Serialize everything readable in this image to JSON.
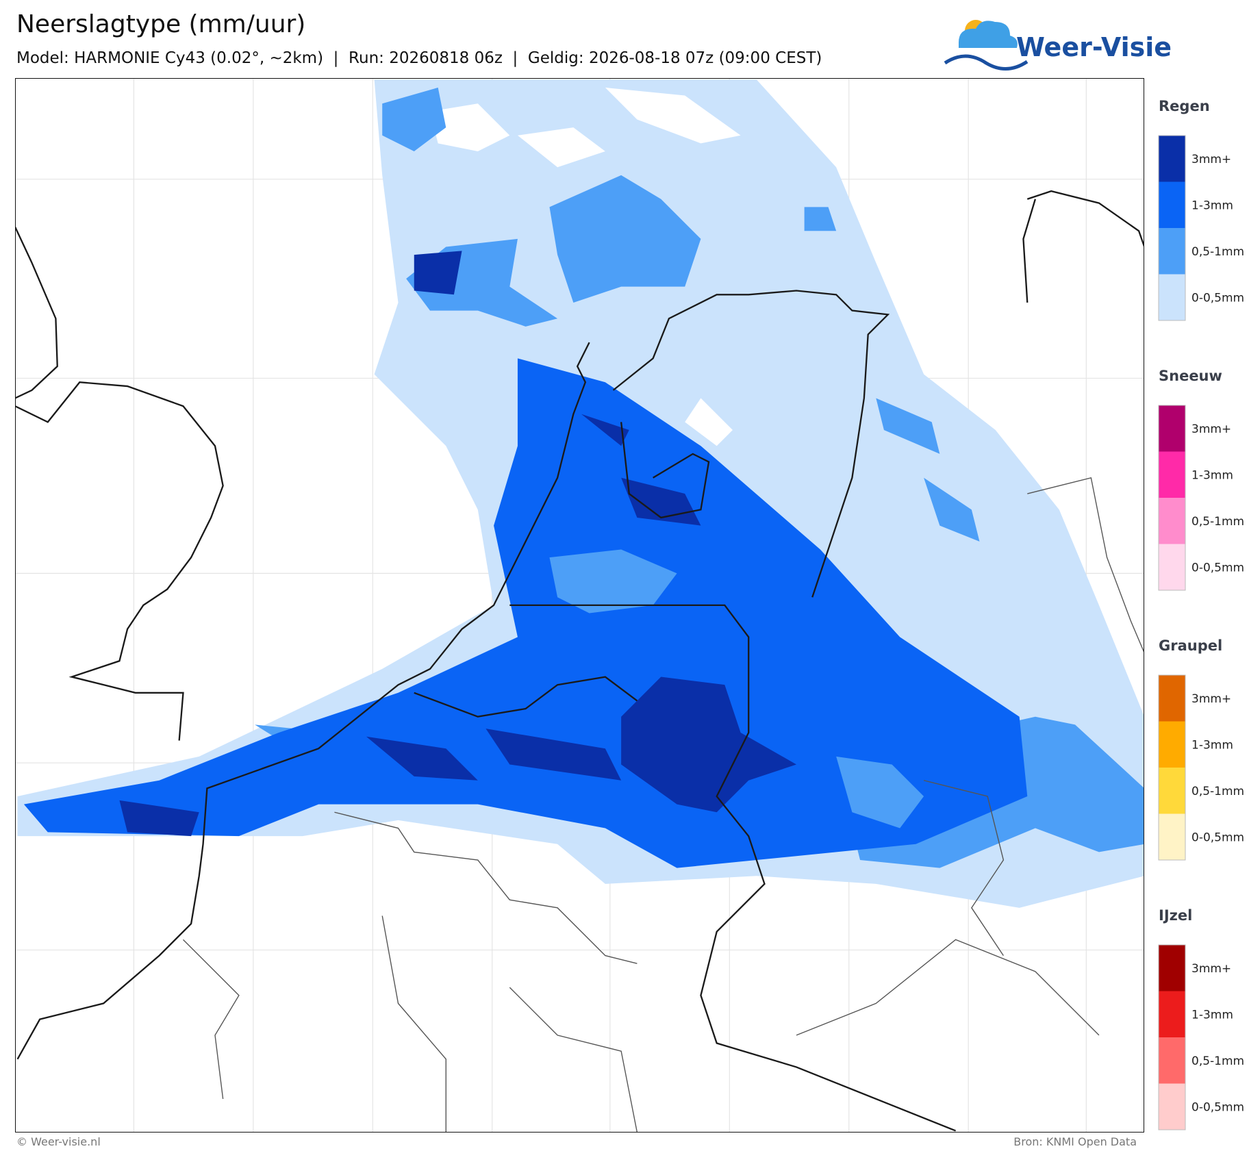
{
  "header": {
    "title": "Neerslagtype (mm/uur)",
    "subtitle": "Model: HARMONIE Cy43 (0.02°, ~2km)  |  Run: 20260818 06z  |  Geldig: 2026-08-18 07z (09:00 CEST)"
  },
  "logo": {
    "text": "Weer-Visie"
  },
  "legend": {
    "groups": [
      {
        "title": "Regen",
        "items": [
          {
            "label": "3mm+",
            "color": "#0a2fa8"
          },
          {
            "label": "1-3mm",
            "color": "#0a64f5"
          },
          {
            "label": "0,5-1mm",
            "color": "#4d9ff7"
          },
          {
            "label": "0-0,5mm",
            "color": "#cbe3fc"
          }
        ]
      },
      {
        "title": "Sneeuw",
        "items": [
          {
            "label": "3mm+",
            "color": "#b0006c"
          },
          {
            "label": "1-3mm",
            "color": "#ff2aa8"
          },
          {
            "label": "0,5-1mm",
            "color": "#ff8ccc"
          },
          {
            "label": "0-0,5mm",
            "color": "#ffd8ec"
          }
        ]
      },
      {
        "title": "Graupel",
        "items": [
          {
            "label": "3mm+",
            "color": "#e06600"
          },
          {
            "label": "1-3mm",
            "color": "#ffab00"
          },
          {
            "label": "0,5-1mm",
            "color": "#ffd93a"
          },
          {
            "label": "0-0,5mm",
            "color": "#fff3c6"
          }
        ]
      },
      {
        "title": "IJzel",
        "items": [
          {
            "label": "3mm+",
            "color": "#a00000"
          },
          {
            "label": "1-3mm",
            "color": "#ec1c1c"
          },
          {
            "label": "0,5-1mm",
            "color": "#ff6a6a"
          },
          {
            "label": "0-0,5mm",
            "color": "#ffcccc"
          }
        ]
      }
    ]
  },
  "footer": {
    "left": "© Weer-visie.nl",
    "right": "Bron: KNMI Open Data"
  }
}
